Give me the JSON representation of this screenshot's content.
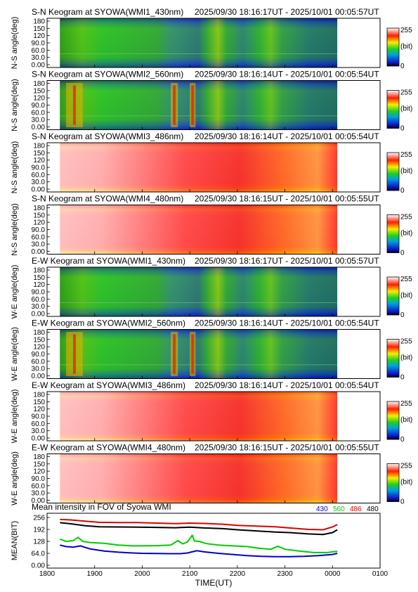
{
  "keograms": [
    {
      "title": "S-N Keogram at SYOWA(WMI1_430nm)",
      "time_range": "2025/09/30 18:16:17UT - 2025/10/01 00:05:57UT",
      "ylabel": "N-S angle(deg)",
      "palette": "cool",
      "band": "430nm"
    },
    {
      "title": "S-N Keogram at SYOWA(WMI2_560nm)",
      "time_range": "2025/09/30 18:16:14UT - 2025/10/01 00:05:54UT",
      "ylabel": "N-S angle(deg)",
      "palette": "cool",
      "band": "560nm"
    },
    {
      "title": "S-N Keogram at SYOWA(WMI3_486nm)",
      "time_range": "2025/09/30 18:16:14UT - 2025/10/01 00:05:54UT",
      "ylabel": "N-S angle(deg)",
      "palette": "hot",
      "band": "486nm"
    },
    {
      "title": "S-N Keogram at SYOWA(WMI4_480nm)",
      "time_range": "2025/09/30 18:16:15UT - 2025/10/01 00:05:55UT",
      "ylabel": "N-S angle(deg)",
      "palette": "hot",
      "band": "480nm"
    },
    {
      "title": "E-W Keogram at SYOWA(WMI1_430nm)",
      "time_range": "2025/09/30 18:16:17UT - 2025/10/01 00:05:57UT",
      "ylabel": "W-E angle(deg)",
      "palette": "cool",
      "band": "430nm"
    },
    {
      "title": "E-W Keogram at SYOWA(WMI2_560nm)",
      "time_range": "2025/09/30 18:16:14UT - 2025/10/01 00:05:54UT",
      "ylabel": "W-E angle(deg)",
      "palette": "cool",
      "band": "560nm"
    },
    {
      "title": "E-W Keogram at SYOWA(WMI3_486nm)",
      "time_range": "2025/09/30 18:16:14UT - 2025/10/01 00:05:54UT",
      "ylabel": "W-E angle(deg)",
      "palette": "hot",
      "band": "486nm"
    },
    {
      "title": "E-W Keogram at SYOWA(WMI4_480nm)",
      "time_range": "2025/09/30 18:16:15UT - 2025/10/01 00:05:55UT",
      "ylabel": "W-E angle(deg)",
      "palette": "hot",
      "band": "480nm"
    }
  ],
  "angle_ticks": [
    "0.00",
    "30.0",
    "60.0",
    "90.0",
    "120",
    "150",
    "180"
  ],
  "colorbar": {
    "max": "255",
    "unit": "(bit)",
    "min": "0"
  },
  "chart_data": {
    "type": "line",
    "title": "Mean intensity in FOV of Syowa WMI",
    "xlabel": "TIME(UT)",
    "ylabel": "MEAN(BIT)",
    "x_ticks": [
      "1800",
      "1900",
      "2000",
      "2100",
      "2200",
      "2300",
      "0000",
      "0100"
    ],
    "y_ticks": [
      "0.00",
      "64.0",
      "128",
      "192",
      "256"
    ],
    "xlim": [
      18.0,
      25.0
    ],
    "ylim": [
      0,
      256
    ],
    "series": [
      {
        "name": "430",
        "color": "#0000cc",
        "x": [
          18.27,
          18.4,
          18.55,
          18.7,
          18.9,
          19.2,
          19.5,
          19.8,
          20.0,
          20.3,
          20.6,
          20.8,
          20.95,
          21.05,
          21.15,
          21.3,
          21.6,
          21.9,
          22.2,
          22.5,
          22.8,
          23.1,
          23.4,
          23.7,
          24.0,
          24.1
        ],
        "y": [
          108,
          100,
          97,
          104,
          88,
          76,
          70,
          66,
          64,
          63,
          62,
          62,
          66,
          72,
          78,
          72,
          64,
          58,
          52,
          48,
          46,
          46,
          48,
          52,
          58,
          64
        ]
      },
      {
        "name": "560",
        "color": "#00cc00",
        "x": [
          18.27,
          18.4,
          18.55,
          18.65,
          18.75,
          18.9,
          19.2,
          19.5,
          19.8,
          20.0,
          20.3,
          20.6,
          20.75,
          20.85,
          20.95,
          21.05,
          21.1,
          21.2,
          21.35,
          21.6,
          21.9,
          22.2,
          22.5,
          22.7,
          22.85,
          23.0,
          23.3,
          23.6,
          23.9,
          24.0,
          24.1
        ],
        "y": [
          140,
          128,
          132,
          150,
          128,
          122,
          118,
          108,
          104,
          104,
          105,
          108,
          132,
          115,
          125,
          160,
          130,
          128,
          116,
          108,
          104,
          100,
          90,
          86,
          102,
          86,
          76,
          68,
          68,
          72,
          75
        ]
      },
      {
        "name": "486",
        "color": "#dd0000",
        "x": [
          18.27,
          18.5,
          18.8,
          19.1,
          19.5,
          19.9,
          20.3,
          20.7,
          21.0,
          21.3,
          21.7,
          22.0,
          22.4,
          22.8,
          23.1,
          23.5,
          23.8,
          24.0,
          24.1
        ],
        "y": [
          246,
          243,
          236,
          230,
          229,
          229,
          226,
          223,
          226,
          224,
          220,
          214,
          210,
          206,
          200,
          192,
          190,
          205,
          218
        ]
      },
      {
        "name": "480",
        "color": "#000000",
        "x": [
          18.27,
          18.5,
          18.8,
          19.1,
          19.5,
          19.9,
          20.3,
          20.7,
          21.0,
          21.3,
          21.7,
          22.0,
          22.4,
          22.8,
          23.1,
          23.5,
          23.8,
          24.0,
          24.1
        ],
        "y": [
          228,
          222,
          212,
          206,
          205,
          204,
          203,
          201,
          204,
          200,
          196,
          190,
          184,
          178,
          175,
          168,
          165,
          175,
          190
        ]
      }
    ]
  }
}
